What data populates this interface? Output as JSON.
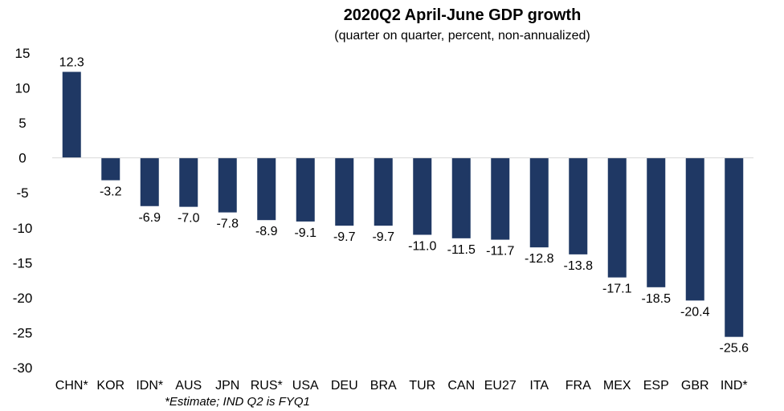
{
  "chart_data": {
    "type": "bar",
    "title": "2020Q2 April-June GDP growth",
    "subtitle": "(quarter on quarter, percent, non-annualized)",
    "footnote": "*Estimate; IND Q2 is FYQ1",
    "xlabel": "",
    "ylabel": "",
    "ylim": [
      -30,
      15
    ],
    "yticks": [
      15,
      10,
      5,
      0,
      -5,
      -10,
      -15,
      -20,
      -25,
      -30
    ],
    "grid": false,
    "legend": "none",
    "bar_color": "#1f3864",
    "categories": [
      "CHN*",
      "KOR",
      "IDN*",
      "AUS",
      "JPN",
      "RUS*",
      "USA",
      "DEU",
      "BRA",
      "TUR",
      "CAN",
      "EU27",
      "ITA",
      "FRA",
      "MEX",
      "ESP",
      "GBR",
      "IND*"
    ],
    "values": [
      12.3,
      -3.2,
      -6.9,
      -7.0,
      -7.8,
      -8.9,
      -9.1,
      -9.7,
      -9.7,
      -11.0,
      -11.5,
      -11.7,
      -12.8,
      -13.8,
      -17.1,
      -18.5,
      -20.4,
      -25.6
    ],
    "value_labels": [
      "12.3",
      "-3.2",
      "-6.9",
      "-7.0",
      "-7.8",
      "-8.9",
      "-9.1",
      "-9.7",
      "-9.7",
      "-11.0",
      "-11.5",
      "-11.7",
      "-12.8",
      "-13.8",
      "-17.1",
      "-18.5",
      "-20.4",
      "-25.6"
    ]
  }
}
